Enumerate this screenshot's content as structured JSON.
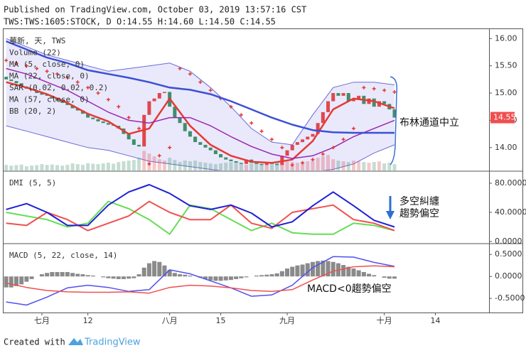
{
  "header": {
    "line1": "Published on TradingView.com, October 03, 2019 13:57:16 CST",
    "line2": "TWS:TWS:1605:STOCK, D O:14.55 H:14.60 L:14.50 C:14.55"
  },
  "footer": {
    "created": "Created with",
    "brand": "TradingView"
  },
  "chart_data": [
    {
      "type": "candlestick",
      "symbol": "華新, 天, TWS",
      "annotation": "布林通道中立",
      "last_price": 14.55,
      "last_price_color": "#f04e4e",
      "ylim": [
        13.58,
        16.16
      ],
      "yticks": [
        {
          "value": 14,
          "label": "14.00"
        },
        {
          "value": 14.5,
          "label": "14.50"
        },
        {
          "value": 15,
          "label": "15.00"
        },
        {
          "value": 15.5,
          "label": "15.50"
        },
        {
          "value": 16,
          "label": "16.00"
        }
      ],
      "up_color": "#e0474c",
      "down_color": "#3f8f6a",
      "x": [
        0,
        1,
        2,
        3,
        4,
        5,
        6,
        7,
        8,
        9,
        10,
        11,
        12,
        13,
        14,
        15,
        16,
        17,
        18,
        19,
        20,
        21,
        22,
        23,
        24,
        25,
        26,
        27,
        28,
        29,
        30,
        31,
        32,
        33,
        34,
        35,
        36,
        37,
        38,
        39,
        40,
        41,
        42,
        43,
        44,
        45,
        46,
        47,
        48,
        49,
        50,
        51,
        52,
        53,
        54,
        55,
        56,
        57,
        58,
        59,
        60,
        61,
        62,
        63,
        64,
        65,
        66,
        67,
        68,
        69,
        70,
        71,
        72,
        73,
        74,
        75,
        76
      ],
      "open": [
        15.3,
        15.25,
        15.22,
        15.18,
        15.12,
        15.08,
        15.05,
        15.0,
        14.97,
        14.95,
        14.9,
        14.86,
        14.82,
        14.78,
        14.72,
        14.68,
        14.62,
        14.55,
        14.52,
        14.48,
        14.45,
        14.42,
        14.4,
        14.35,
        14.25,
        14.15,
        14.05,
        14.02,
        14.6,
        14.85,
        14.9,
        15.0,
        15.02,
        14.75,
        14.55,
        14.45,
        14.3,
        14.2,
        14.1,
        14.05,
        14.0,
        13.95,
        13.88,
        13.82,
        13.78,
        13.75,
        13.72,
        13.7,
        13.78,
        13.72,
        13.7,
        13.68,
        13.72,
        13.7,
        13.68,
        13.85,
        13.95,
        14.05,
        14.1,
        14.15,
        14.2,
        14.25,
        14.45,
        14.65,
        14.85,
        15.0,
        14.95,
        15.0,
        14.85,
        14.9,
        14.95,
        14.8,
        14.9,
        14.75,
        14.85,
        14.8,
        14.7
      ],
      "close": [
        15.25,
        15.22,
        15.18,
        15.12,
        15.08,
        15.05,
        15.0,
        14.97,
        14.95,
        14.9,
        14.86,
        14.82,
        14.78,
        14.72,
        14.68,
        14.62,
        14.55,
        14.52,
        14.48,
        14.45,
        14.42,
        14.4,
        14.35,
        14.25,
        14.15,
        14.05,
        14.02,
        14.6,
        14.85,
        14.9,
        15.0,
        15.02,
        14.75,
        14.55,
        14.45,
        14.3,
        14.2,
        14.1,
        14.05,
        14.0,
        13.95,
        13.88,
        13.82,
        13.78,
        13.75,
        13.72,
        13.7,
        13.78,
        13.72,
        13.7,
        13.68,
        13.72,
        13.7,
        13.68,
        13.85,
        13.95,
        14.05,
        14.1,
        14.15,
        14.2,
        14.25,
        14.45,
        14.65,
        14.85,
        15.0,
        14.95,
        15.0,
        14.85,
        14.9,
        14.95,
        14.8,
        14.9,
        14.75,
        14.85,
        14.8,
        14.7,
        14.55
      ],
      "volume": {
        "name": "Volume (22)",
        "ylim": [
          0,
          10000
        ],
        "values": [
          400,
          350,
          380,
          420,
          300,
          350,
          380,
          450,
          400,
          420,
          380,
          350,
          400,
          500,
          450,
          400,
          520,
          480,
          450,
          500,
          550,
          480,
          600,
          650,
          700,
          750,
          900,
          1400,
          1200,
          1000,
          800,
          700,
          900,
          750,
          600,
          700,
          650,
          700,
          600,
          550,
          500,
          450,
          500,
          550,
          600,
          500,
          450,
          400,
          500,
          550,
          450,
          400,
          500,
          600,
          700,
          650,
          600,
          550,
          600,
          650,
          700,
          900,
          1000,
          1100,
          800,
          700,
          650,
          600,
          700,
          650,
          600,
          550,
          600,
          650,
          500,
          550,
          450
        ]
      },
      "series": [
        {
          "name": "MA (5, close, 0)",
          "style": "line",
          "color": "#e53935",
          "width": 2.5,
          "x": [
            0,
            4,
            8,
            12,
            16,
            20,
            24,
            28,
            32,
            36,
            40,
            44,
            48,
            52,
            56,
            60,
            64,
            68,
            72,
            76
          ],
          "values": [
            15.2,
            15.1,
            14.98,
            14.82,
            14.62,
            14.48,
            14.25,
            14.35,
            14.9,
            14.4,
            14.05,
            13.85,
            13.74,
            13.72,
            13.78,
            14.12,
            14.7,
            14.9,
            14.85,
            14.72
          ]
        },
        {
          "name": "MA (22, close, 0)",
          "style": "line",
          "color": "#9c27b0",
          "width": 1.5,
          "x": [
            0,
            4,
            8,
            12,
            16,
            20,
            24,
            28,
            32,
            36,
            40,
            44,
            48,
            52,
            56,
            60,
            64,
            68,
            72,
            76
          ],
          "values": [
            15.45,
            15.35,
            15.2,
            15.05,
            14.85,
            14.65,
            14.5,
            14.45,
            14.55,
            14.55,
            14.4,
            14.2,
            14.02,
            13.88,
            13.8,
            13.85,
            14.0,
            14.2,
            14.35,
            14.5
          ]
        },
        {
          "name": "SAR (0.02, 0.02, 0.2)",
          "style": "cross",
          "color": "#e53935",
          "x": [
            0,
            2,
            4,
            6,
            8,
            10,
            12,
            14,
            16,
            18,
            20,
            22,
            24,
            26,
            28,
            30,
            32,
            34,
            36,
            38,
            40,
            42,
            44,
            46,
            48,
            50,
            52,
            54,
            56,
            58,
            60,
            62,
            64,
            66,
            68,
            70,
            72,
            74,
            76
          ],
          "values": [
            15.6,
            15.55,
            15.5,
            15.45,
            15.4,
            15.35,
            15.28,
            15.2,
            15.1,
            15.0,
            14.88,
            14.75,
            14.55,
            14.35,
            13.7,
            13.85,
            14.0,
            15.45,
            15.35,
            15.2,
            15.05,
            14.9,
            14.75,
            14.6,
            14.45,
            14.3,
            14.15,
            14.0,
            13.68,
            13.72,
            13.78,
            13.88,
            14.0,
            14.15,
            14.35,
            15.1,
            15.08,
            15.05,
            15.02
          ]
        },
        {
          "name": "MA (57, close, 0)",
          "style": "line",
          "color": "#3b4fd6",
          "width": 2.5,
          "x": [
            0,
            4,
            8,
            12,
            16,
            20,
            24,
            28,
            32,
            36,
            40,
            44,
            48,
            52,
            56,
            60,
            64,
            68,
            72,
            76
          ],
          "values": [
            15.95,
            15.8,
            15.65,
            15.55,
            15.42,
            15.35,
            15.28,
            15.2,
            15.1,
            15.06,
            14.98,
            14.85,
            14.7,
            14.55,
            14.42,
            14.32,
            14.28,
            14.27,
            14.27,
            14.27
          ]
        },
        {
          "name": "BB (20, 2)",
          "style": "band",
          "color": "#6a6ad8",
          "fill": "rgba(120,120,230,0.16)",
          "x": [
            0,
            4,
            8,
            12,
            16,
            20,
            24,
            28,
            32,
            36,
            40,
            44,
            48,
            52,
            56,
            60,
            64,
            68,
            72,
            76
          ],
          "upper": [
            16.0,
            15.85,
            15.7,
            15.6,
            15.5,
            15.4,
            15.45,
            15.5,
            15.55,
            15.4,
            15.1,
            14.75,
            14.35,
            14.1,
            14.05,
            14.6,
            15.1,
            15.2,
            15.2,
            15.15
          ],
          "lower": [
            14.4,
            14.3,
            14.2,
            14.1,
            14.0,
            13.95,
            13.85,
            13.75,
            13.7,
            13.65,
            13.6,
            13.55,
            13.5,
            13.5,
            13.5,
            13.55,
            13.6,
            13.7,
            13.9,
            14.05
          ]
        }
      ]
    },
    {
      "type": "line",
      "title": "DMI (5, 5)",
      "annotation": [
        "多空糾纏",
        "趨勢偏空"
      ],
      "ylim": [
        -2,
        95.6
      ],
      "yticks": [
        {
          "value": 0,
          "label": "0.0000"
        },
        {
          "value": 40,
          "label": "40.0000"
        },
        {
          "value": 80,
          "label": "80.0000"
        }
      ],
      "series": [
        {
          "color": "#66dd55",
          "x": [
            0,
            4,
            8,
            12,
            16,
            20,
            24,
            28,
            32,
            36,
            40,
            44,
            48,
            52,
            56,
            60,
            64,
            68,
            72,
            76
          ],
          "values": [
            40,
            35,
            30,
            20,
            25,
            55,
            45,
            30,
            10,
            50,
            45,
            30,
            15,
            25,
            12,
            10,
            10,
            25,
            22,
            15
          ]
        },
        {
          "color": "#f05050",
          "x": [
            0,
            4,
            8,
            12,
            16,
            20,
            24,
            28,
            32,
            36,
            40,
            44,
            48,
            52,
            56,
            60,
            64,
            68,
            72,
            76
          ],
          "values": [
            25,
            22,
            40,
            30,
            15,
            25,
            35,
            55,
            40,
            30,
            30,
            50,
            25,
            18,
            40,
            45,
            50,
            30,
            25,
            15
          ]
        },
        {
          "color": "#1f1fd6",
          "x": [
            0,
            4,
            8,
            12,
            16,
            20,
            24,
            28,
            32,
            36,
            40,
            44,
            48,
            52,
            56,
            60,
            64,
            68,
            72,
            76
          ],
          "values": [
            44,
            52,
            40,
            22,
            22,
            50,
            68,
            78,
            66,
            49,
            44,
            50,
            39,
            20,
            27,
            49,
            68,
            49,
            29,
            20
          ]
        }
      ]
    },
    {
      "type": "macd",
      "title": "MACD (5, 22, close, 14)",
      "annotation": "MACD<0趨勢偏空",
      "ylim": [
        -0.82,
        0.73
      ],
      "yticks": [
        {
          "value": -0.5,
          "label": "-0.5000"
        },
        {
          "value": 0,
          "label": "0.0000"
        },
        {
          "value": 0.5,
          "label": "0.5000"
        }
      ],
      "xlim": [
        -0.5,
        94.5
      ],
      "xticks": [
        {
          "value": 7,
          "label": "七月"
        },
        {
          "value": 16,
          "label": "12"
        },
        {
          "value": 32,
          "label": "八月"
        },
        {
          "value": 42,
          "label": "15"
        },
        {
          "value": 55,
          "label": "九月"
        },
        {
          "value": 74,
          "label": "十月"
        },
        {
          "value": 84,
          "label": "14"
        }
      ],
      "histogram": {
        "color": "rgba(60,60,60,0.6)",
        "x": [
          0,
          1,
          2,
          3,
          4,
          5,
          6,
          7,
          8,
          9,
          10,
          11,
          12,
          13,
          14,
          15,
          16,
          17,
          18,
          19,
          20,
          21,
          22,
          23,
          24,
          25,
          26,
          27,
          28,
          29,
          30,
          31,
          32,
          33,
          34,
          35,
          36,
          37,
          38,
          39,
          40,
          41,
          42,
          43,
          44,
          45,
          46,
          47,
          48,
          49,
          50,
          51,
          52,
          53,
          54,
          55,
          56,
          57,
          58,
          59,
          60,
          61,
          62,
          63,
          64,
          65,
          66,
          67,
          68,
          69,
          70,
          71,
          72,
          73,
          74,
          75,
          76
        ],
        "values": [
          -0.25,
          -0.25,
          -0.22,
          -0.18,
          -0.12,
          -0.06,
          0,
          0.05,
          0.08,
          0.1,
          0.1,
          0.1,
          0.1,
          0.08,
          0.06,
          0.05,
          0.03,
          0.02,
          0,
          -0.02,
          -0.04,
          -0.05,
          -0.06,
          -0.06,
          -0.05,
          -0.04,
          0.05,
          0.2,
          0.3,
          0.35,
          0.33,
          0.25,
          0.15,
          0.08,
          0.05,
          0.04,
          0.02,
          0,
          -0.03,
          -0.06,
          -0.09,
          -0.1,
          -0.1,
          -0.09,
          -0.08,
          -0.06,
          -0.04,
          -0.02,
          0,
          0.02,
          0.03,
          0.04,
          0.05,
          0.07,
          0.12,
          0.18,
          0.22,
          0.25,
          0.27,
          0.3,
          0.33,
          0.35,
          0.36,
          0.35,
          0.33,
          0.3,
          0.26,
          0.22,
          0.18,
          0.14,
          0.1,
          0.06,
          0.03,
          0,
          -0.03,
          -0.05,
          -0.05
        ]
      },
      "series": [
        {
          "color": "#5050f0",
          "x": [
            0,
            4,
            8,
            12,
            16,
            20,
            24,
            28,
            32,
            36,
            40,
            44,
            48,
            52,
            56,
            60,
            64,
            68,
            72,
            76
          ],
          "values": [
            -0.58,
            -0.65,
            -0.47,
            -0.26,
            -0.2,
            -0.25,
            -0.34,
            -0.3,
            0.15,
            0.06,
            -0.1,
            -0.26,
            -0.45,
            -0.42,
            -0.2,
            0.2,
            0.45,
            0.44,
            0.32,
            0.23
          ]
        },
        {
          "color": "#f05050",
          "x": [
            0,
            4,
            8,
            12,
            16,
            20,
            24,
            28,
            32,
            36,
            40,
            44,
            48,
            52,
            56,
            60,
            64,
            68,
            72,
            76
          ],
          "values": [
            -0.15,
            -0.25,
            -0.32,
            -0.35,
            -0.36,
            -0.36,
            -0.35,
            -0.38,
            -0.25,
            -0.2,
            -0.22,
            -0.26,
            -0.32,
            -0.34,
            -0.3,
            -0.08,
            0.12,
            0.22,
            0.24,
            0.22
          ]
        }
      ]
    }
  ]
}
